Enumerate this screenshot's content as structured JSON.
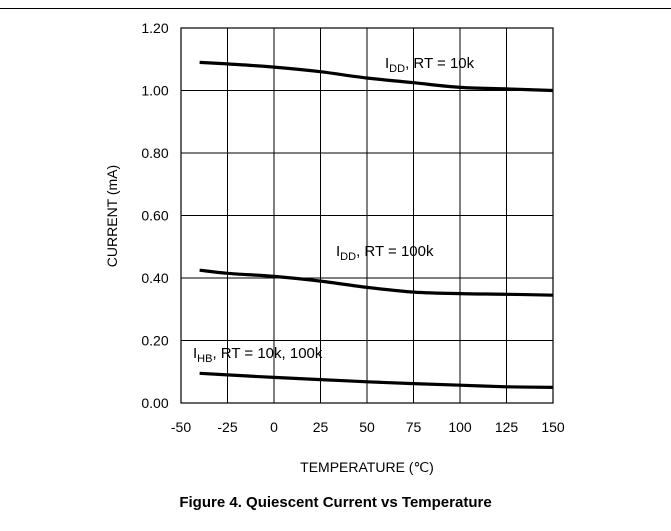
{
  "caption": "Figure 4. Quiescent Current vs Temperature",
  "chart_data": {
    "type": "line",
    "title": "Figure 4. Quiescent Current vs Temperature",
    "xlabel": "TEMPERATURE (℃)",
    "ylabel": "CURRENT (mA)",
    "xlim": [
      -50,
      150
    ],
    "ylim": [
      0,
      1.2
    ],
    "x_ticks": [
      "-50",
      "-25",
      "0",
      "25",
      "50",
      "75",
      "100",
      "125",
      "150"
    ],
    "y_ticks": [
      "0.00",
      "0.20",
      "0.40",
      "0.60",
      "0.80",
      "1.00",
      "1.20"
    ],
    "grid": true,
    "line_color": "#000000",
    "series": [
      {
        "name": "IDD, RT = 10k",
        "label_main": "I",
        "label_sub": "DD",
        "label_rest": ", RT = 10k",
        "x": [
          -40,
          -25,
          0,
          25,
          50,
          75,
          100,
          125,
          150
        ],
        "y": [
          1.09,
          1.085,
          1.075,
          1.06,
          1.04,
          1.025,
          1.01,
          1.005,
          1.0
        ]
      },
      {
        "name": "IDD, RT = 100k",
        "label_main": "I",
        "label_sub": "DD",
        "label_rest": ", RT = 100k",
        "x": [
          -40,
          -25,
          0,
          25,
          50,
          75,
          100,
          125,
          150
        ],
        "y": [
          0.425,
          0.415,
          0.405,
          0.39,
          0.37,
          0.355,
          0.35,
          0.348,
          0.345
        ]
      },
      {
        "name": "IHB, RT = 10k, 100k",
        "label_main": "I",
        "label_sub": "HB",
        "label_rest": ", RT = 10k, 100k",
        "x": [
          -40,
          -25,
          0,
          25,
          50,
          75,
          100,
          125,
          150
        ],
        "y": [
          0.095,
          0.09,
          0.082,
          0.075,
          0.068,
          0.062,
          0.057,
          0.052,
          0.05
        ]
      }
    ]
  }
}
